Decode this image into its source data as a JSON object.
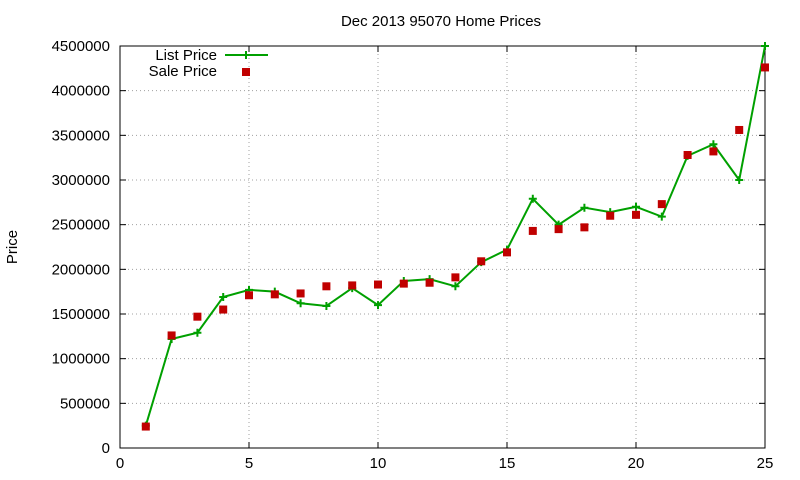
{
  "chart_data": {
    "type": "line",
    "title": "Dec 2013 95070 Home Prices",
    "xlabel": "",
    "ylabel": "Price",
    "xlim": [
      0,
      25
    ],
    "ylim": [
      0,
      4500000
    ],
    "xticks": [
      0,
      5,
      10,
      15,
      20,
      25
    ],
    "yticks": [
      0,
      500000,
      1000000,
      1500000,
      2000000,
      2500000,
      3000000,
      3500000,
      4000000,
      4500000
    ],
    "grid": true,
    "legend_position": "top-left",
    "x": [
      1,
      2,
      3,
      4,
      5,
      6,
      7,
      8,
      9,
      10,
      11,
      12,
      13,
      14,
      15,
      16,
      17,
      18,
      19,
      20,
      21,
      22,
      23,
      24,
      25
    ],
    "series": [
      {
        "name": "List Price",
        "style": "line-plus",
        "color": "#00a000",
        "values": [
          250000,
          1220000,
          1290000,
          1690000,
          1770000,
          1750000,
          1620000,
          1590000,
          1790000,
          1600000,
          1870000,
          1890000,
          1810000,
          2080000,
          2220000,
          2790000,
          2500000,
          2690000,
          2640000,
          2700000,
          2590000,
          3270000,
          3400000,
          3000000,
          4500000
        ]
      },
      {
        "name": "Sale Price",
        "style": "square",
        "color": "#c00000",
        "values": [
          240000,
          1260000,
          1470000,
          1550000,
          1710000,
          1720000,
          1730000,
          1810000,
          1820000,
          1830000,
          1840000,
          1850000,
          1910000,
          2090000,
          2190000,
          2430000,
          2450000,
          2470000,
          2600000,
          2610000,
          2730000,
          3280000,
          3320000,
          3560000,
          4260000
        ]
      }
    ]
  }
}
